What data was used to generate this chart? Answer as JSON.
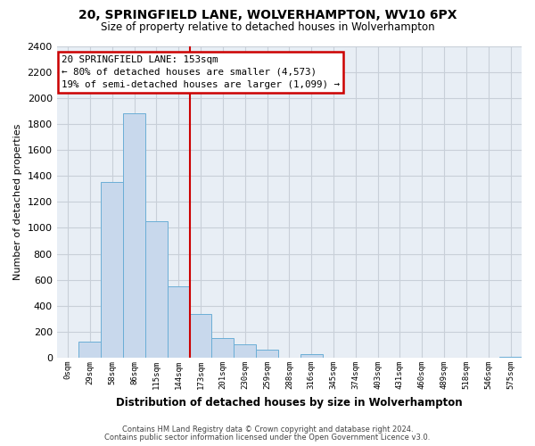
{
  "title": "20, SPRINGFIELD LANE, WOLVERHAMPTON, WV10 6PX",
  "subtitle": "Size of property relative to detached houses in Wolverhampton",
  "xlabel": "Distribution of detached houses by size in Wolverhampton",
  "ylabel": "Number of detached properties",
  "bar_labels": [
    "0sqm",
    "29sqm",
    "58sqm",
    "86sqm",
    "115sqm",
    "144sqm",
    "173sqm",
    "201sqm",
    "230sqm",
    "259sqm",
    "288sqm",
    "316sqm",
    "345sqm",
    "374sqm",
    "403sqm",
    "431sqm",
    "460sqm",
    "489sqm",
    "518sqm",
    "546sqm",
    "575sqm"
  ],
  "bar_values": [
    0,
    125,
    1350,
    1880,
    1050,
    550,
    340,
    155,
    105,
    60,
    0,
    30,
    0,
    0,
    0,
    0,
    0,
    0,
    0,
    0,
    10
  ],
  "bar_color": "#c8d8ec",
  "bar_edge_color": "#6baed6",
  "vline_x_idx": 6,
  "vline_color": "#cc0000",
  "ylim": [
    0,
    2400
  ],
  "yticks": [
    0,
    200,
    400,
    600,
    800,
    1000,
    1200,
    1400,
    1600,
    1800,
    2000,
    2200,
    2400
  ],
  "annotation_title": "20 SPRINGFIELD LANE: 153sqm",
  "annotation_line1": "← 80% of detached houses are smaller (4,573)",
  "annotation_line2": "19% of semi-detached houses are larger (1,099) →",
  "annotation_box_color": "#ffffff",
  "annotation_box_edge": "#cc0000",
  "footer1": "Contains HM Land Registry data © Crown copyright and database right 2024.",
  "footer2": "Contains public sector information licensed under the Open Government Licence v3.0.",
  "plot_bg_color": "#e8eef5",
  "fig_bg_color": "#ffffff",
  "grid_color": "#c8cfd8"
}
